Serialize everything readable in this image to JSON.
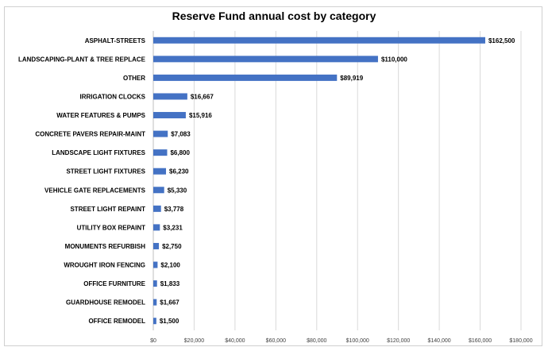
{
  "chart_data": {
    "type": "bar",
    "orientation": "horizontal",
    "title": "Reserve Fund annual cost by category",
    "categories": [
      "ASPHALT-STREETS",
      "LANDSCAPING-PLANT & TREE REPLACE",
      "OTHER",
      "IRRIGATION CLOCKS",
      "WATER FEATURES & PUMPS",
      "CONCRETE PAVERS REPAIR-MAINT",
      "LANDSCAPE LIGHT FIXTURES",
      "STREET LIGHT FIXTURES",
      "VEHICLE GATE REPLACEMENTS",
      "STREET LIGHT REPAINT",
      "UTILITY BOX REPAINT",
      "MONUMENTS REFURBISH",
      "WROUGHT IRON FENCING",
      "OFFICE FURNITURE",
      "GUARDHOUSE REMODEL",
      "OFFICE REMODEL"
    ],
    "values": [
      162500,
      110000,
      89919,
      16667,
      15916,
      7083,
      6800,
      6230,
      5330,
      3778,
      3231,
      2750,
      2100,
      1833,
      1667,
      1500
    ],
    "data_labels": [
      "$162,500",
      "$110,000",
      "$89,919",
      "$16,667",
      "$15,916",
      "$7,083",
      "$6,800",
      "$6,230",
      "$5,330",
      "$3,778",
      "$3,231",
      "$2,750",
      "$2,100",
      "$1,833",
      "$1,667",
      "$1,500"
    ],
    "xlim": [
      0,
      180000
    ],
    "xticks": [
      0,
      20000,
      40000,
      60000,
      80000,
      100000,
      120000,
      140000,
      160000,
      180000
    ],
    "xtick_labels": [
      "$0",
      "$20,000",
      "$40,000",
      "$60,000",
      "$80,000",
      "$100,000",
      "$120,000",
      "$140,000",
      "$160,000",
      "$180,000"
    ],
    "grid": true,
    "bar_color": "#4472c4",
    "grid_color": "#d9d9d9"
  }
}
